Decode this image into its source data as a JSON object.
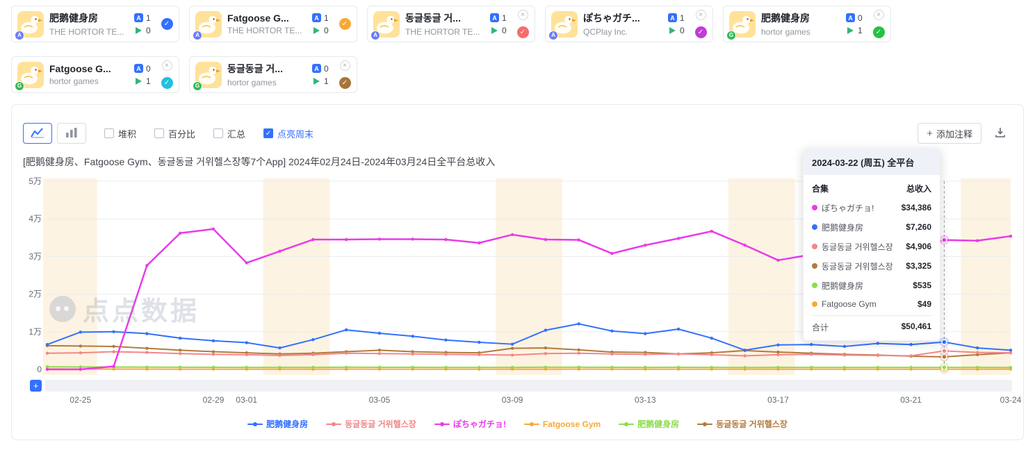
{
  "accent": "#3370ff",
  "watermark": "点点数据",
  "apps": [
    {
      "name": "肥鹅健身房",
      "publisher": "THE HORTOR TE...",
      "ios": 1,
      "gp": 0,
      "closable": false,
      "color": "#3370ff"
    },
    {
      "name": "Fatgoose G...",
      "publisher": "THE HORTOR TE...",
      "ios": 1,
      "gp": 0,
      "closable": false,
      "color": "#f7a937"
    },
    {
      "name": "동글동글 거...",
      "publisher": "THE HORTOR TE...",
      "ios": 1,
      "gp": 0,
      "closable": true,
      "color": "#f56c6c"
    },
    {
      "name": "ぽちゃガチ...",
      "publisher": "QCPlay Inc.",
      "ios": 1,
      "gp": 0,
      "closable": true,
      "color": "#c23bd6"
    },
    {
      "name": "肥鹅健身房",
      "publisher": "hortor games",
      "ios": 0,
      "gp": 1,
      "closable": true,
      "color": "#23c343"
    },
    {
      "name": "Fatgoose G...",
      "publisher": "hortor games",
      "ios": 0,
      "gp": 1,
      "closable": true,
      "color": "#22c0e0"
    },
    {
      "name": "동글동글 거...",
      "publisher": "hortor games",
      "ios": 0,
      "gp": 1,
      "closable": true,
      "color": "#a9743a"
    }
  ],
  "toolbar": {
    "checkboxes": [
      {
        "label": "堆积",
        "checked": false
      },
      {
        "label": "百分比",
        "checked": false
      },
      {
        "label": "汇总",
        "checked": false
      },
      {
        "label": "点亮周末",
        "checked": true
      }
    ],
    "annotate_label": "添加注释"
  },
  "subtitle": "[肥鹅健身房、Fatgoose Gym、동글동글 거위헬스장等7个App]  2024年02月24日-2024年03月24日全平台总收入",
  "tooltip": {
    "title": "2024-03-22 (周五) 全平台",
    "col_name": "合集",
    "col_value": "总收入",
    "rows": [
      {
        "name": "ぽちゃガチョ!",
        "value": "$34,386",
        "color": "#e93be9"
      },
      {
        "name": "肥鹅健身房",
        "value": "$7,260",
        "color": "#3370ff"
      },
      {
        "name": "동글동글 거위헬스장",
        "value": "$4,906",
        "color": "#f18787"
      },
      {
        "name": "동글동글 거위헬스장",
        "value": "$3,325",
        "color": "#b27a3d"
      },
      {
        "name": "肥鹅健身房",
        "value": "$535",
        "color": "#8ddb4e"
      },
      {
        "name": "Fatgoose Gym",
        "value": "$49",
        "color": "#f7a937"
      }
    ],
    "total_label": "合计",
    "total_value": "$50,461"
  },
  "chart_data": {
    "type": "line",
    "title": "全平台总收入 (2024-02-24 ~ 2024-03-24)",
    "ylim": [
      0,
      50000
    ],
    "y_ticks": [
      "0",
      "1万",
      "2万",
      "3万",
      "4万",
      "5万"
    ],
    "x": [
      "02-24",
      "02-25",
      "02-26",
      "02-27",
      "02-28",
      "02-29",
      "03-01",
      "03-02",
      "03-03",
      "03-04",
      "03-05",
      "03-06",
      "03-07",
      "03-08",
      "03-09",
      "03-10",
      "03-11",
      "03-12",
      "03-13",
      "03-14",
      "03-15",
      "03-16",
      "03-17",
      "03-18",
      "03-19",
      "03-20",
      "03-21",
      "03-22",
      "03-23",
      "03-24"
    ],
    "x_ticks": [
      "02-25",
      "02-29",
      "03-01",
      "03-05",
      "03-09",
      "03-13",
      "03-17",
      "03-21",
      "03-24"
    ],
    "weekend_dates": [
      "02-24",
      "02-25",
      "03-02",
      "03-03",
      "03-09",
      "03-10",
      "03-16",
      "03-17",
      "03-23",
      "03-24"
    ],
    "highlight_date": "03-22",
    "series": [
      {
        "name": "肥鹅健身房",
        "color": "#3370ff",
        "values": [
          6600,
          9900,
          10000,
          9500,
          8300,
          7600,
          7100,
          5700,
          7900,
          10500,
          9600,
          8800,
          7800,
          7200,
          6700,
          10400,
          12100,
          10200,
          9500,
          10700,
          8300,
          5100,
          6500,
          6600,
          6100,
          6900,
          6600,
          7260,
          5700,
          5100
        ]
      },
      {
        "name": "동글동글 거위헬스장",
        "color": "#f18787",
        "values": [
          4300,
          4400,
          4700,
          4500,
          4200,
          4000,
          3900,
          3700,
          3900,
          4300,
          4200,
          4100,
          4000,
          3900,
          3800,
          4200,
          4300,
          4100,
          4000,
          4100,
          3900,
          3600,
          3900,
          4000,
          3800,
          3700,
          3600,
          4906,
          4500,
          4400
        ]
      },
      {
        "name": "ぽちゃガチョ!",
        "color": "#e93be9",
        "values": [
          0,
          0,
          800,
          27600,
          36200,
          37300,
          28300,
          31400,
          34500,
          34500,
          34600,
          34600,
          34500,
          33600,
          35800,
          34500,
          34400,
          30800,
          33000,
          34800,
          36700,
          33000,
          29000,
          30500,
          26300,
          28400,
          31600,
          34386,
          34200,
          35400
        ]
      },
      {
        "name": "Fatgoose Gym",
        "color": "#f7a937",
        "values": [
          120,
          90,
          70,
          60,
          55,
          50,
          50,
          45,
          50,
          60,
          55,
          50,
          50,
          45,
          50,
          55,
          60,
          50,
          45,
          50,
          55,
          45,
          50,
          50,
          45,
          50,
          55,
          49,
          50,
          60
        ]
      },
      {
        "name": "肥鹅健身房",
        "color": "#8ddb4e",
        "values": [
          700,
          650,
          620,
          600,
          580,
          560,
          540,
          520,
          540,
          570,
          560,
          550,
          540,
          530,
          540,
          570,
          580,
          550,
          540,
          550,
          530,
          510,
          530,
          540,
          520,
          530,
          540,
          535,
          520,
          510
        ]
      },
      {
        "name": "동글동글 거위헬스장",
        "color": "#b27a3d",
        "values": [
          6300,
          6200,
          6100,
          5600,
          5100,
          4700,
          4400,
          4100,
          4300,
          4700,
          5100,
          4700,
          4500,
          4400,
          5600,
          5700,
          5200,
          4600,
          4500,
          4100,
          4400,
          5000,
          4600,
          4300,
          4000,
          3800,
          3500,
          3325,
          3900,
          4400
        ]
      }
    ],
    "legend_position": "bottom",
    "grid": true
  }
}
